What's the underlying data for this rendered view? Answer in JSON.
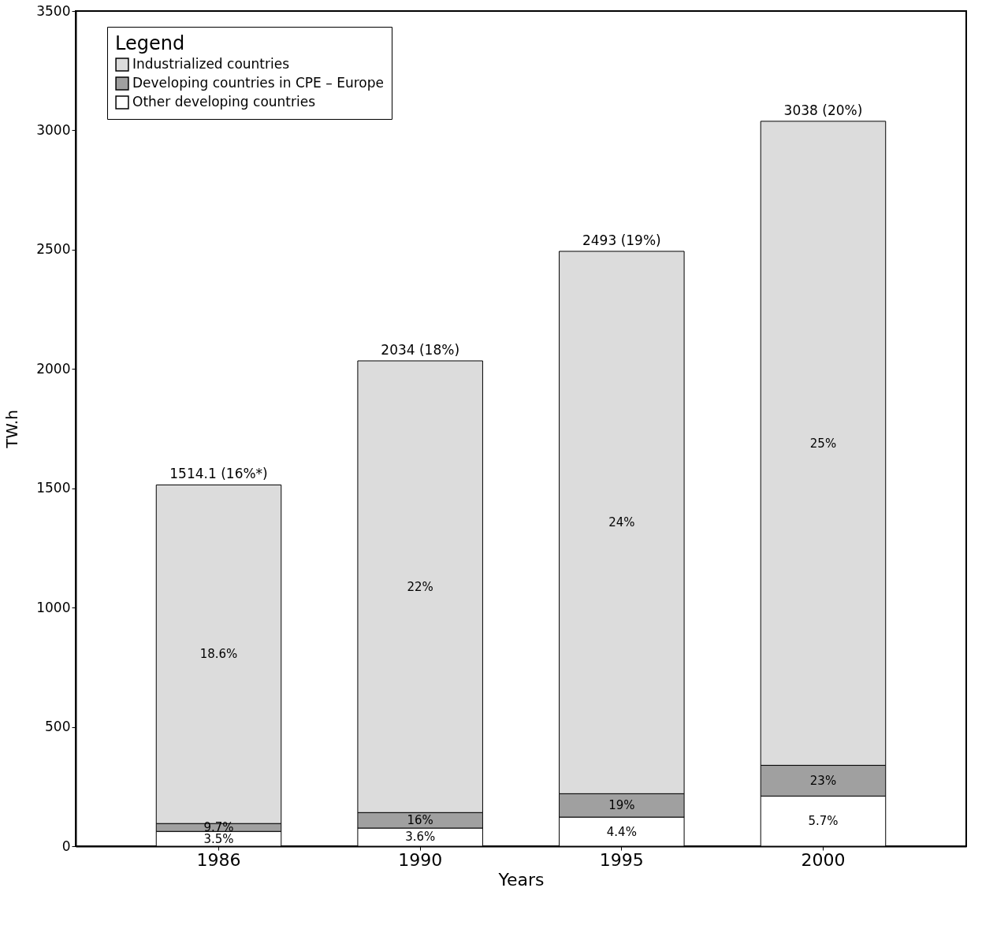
{
  "chart_data": {
    "type": "bar",
    "stacked": true,
    "xlabel": "Years",
    "ylabel": "TW.h",
    "legend_title": "Legend",
    "legend": "top left",
    "grid": false,
    "categories": [
      "1986",
      "1990",
      "1995",
      "2000"
    ],
    "series": [
      {
        "name": "Other developing countries",
        "color": "#ffffff",
        "values": [
          62,
          76,
          122,
          210
        ]
      },
      {
        "name": "Developing countries in CPE – Europe",
        "color": "#a0a0a0",
        "values": [
          33,
          65,
          98,
          129
        ]
      },
      {
        "name": "Industrialized countries",
        "color": "#dcdcdc",
        "values": [
          1419,
          1893,
          2273,
          2699
        ]
      }
    ],
    "totals": [
      "1514.1 (16%*)",
      "2034 (18%)",
      "2493 (19%)",
      "3038 (20%)"
    ],
    "annotations": [
      "3.5%",
      "9.7%",
      "18.6%",
      "3.6%",
      "16%",
      "22%",
      "4.4%",
      "19%",
      "24%",
      "5.7%",
      "23%",
      "25%"
    ],
    "ylim": [
      0,
      3500
    ],
    "yticks": [
      0,
      500,
      1000,
      1500,
      2000,
      2500,
      3000,
      3500
    ]
  }
}
